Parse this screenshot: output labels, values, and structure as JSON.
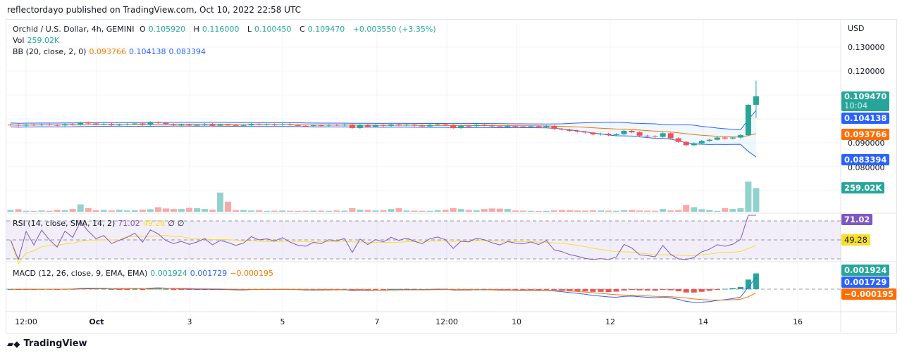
{
  "publisher": "reflectordayo published on TradingView.com, Oct 10, 2022 22:58 UTC",
  "symbol": {
    "title": "Orchid / U.S. Dollar, 4h, GEMINI",
    "o_label": "O",
    "o": "0.105920",
    "h_label": "H",
    "h": "0.116000",
    "l_label": "L",
    "l": "0.100450",
    "c_label": "C",
    "c": "0.109470",
    "change": "+0.003550 (+3.35%)"
  },
  "vol": {
    "label": "Vol",
    "value": "259.02K"
  },
  "bb": {
    "label": "BB (20, close, 2, 0)",
    "basis": "0.093766",
    "upper": "0.104138",
    "lower": "0.083394"
  },
  "rsi": {
    "label": "RSI (14, close, SMA, 14, 2)",
    "value": "71.02",
    "sma": "49.28",
    "extra1": "∅",
    "extra2": "∅"
  },
  "macd": {
    "label": "MACD (12, 26, close, 9, EMA, EMA)",
    "macd": "0.001924",
    "signal": "0.001729",
    "hist": "−0.000195"
  },
  "price_axis": {
    "currency": "USD",
    "ticks": [
      "0.130000",
      "0.120000",
      "0.090000",
      "0.080000"
    ],
    "last": "0.109470",
    "countdown": "10:04"
  },
  "time_axis": [
    "12:00",
    "Oct",
    "3",
    "5",
    "7",
    "12:00",
    "10",
    "12",
    "14",
    "16"
  ],
  "colors": {
    "up": "#26a69a",
    "down": "#ef5350",
    "bb_band": "#2962ff",
    "bb_basis": "#ff6d00",
    "rsi": "#7e57c2",
    "rsi_sma": "#f7de2c"
  },
  "footer": "TradingView",
  "chart_data": {
    "type": "candlestick",
    "interval": "4h",
    "price_range": [
      0.078,
      0.132
    ],
    "closes": [
      0.0975,
      0.0972,
      0.0976,
      0.0974,
      0.0977,
      0.0975,
      0.0973,
      0.0978,
      0.0976,
      0.0985,
      0.0981,
      0.0977,
      0.0979,
      0.0974,
      0.0976,
      0.0978,
      0.0981,
      0.0975,
      0.0986,
      0.0983,
      0.0977,
      0.0974,
      0.0976,
      0.0973,
      0.0975,
      0.0978,
      0.0972,
      0.0976,
      0.0974,
      0.0971,
      0.0973,
      0.0979,
      0.0976,
      0.0977,
      0.0975,
      0.0978,
      0.0974,
      0.0971,
      0.097,
      0.0973,
      0.0972,
      0.0975,
      0.0974,
      0.0976,
      0.0962,
      0.0975,
      0.0968,
      0.0974,
      0.0971,
      0.0977,
      0.0973,
      0.0976,
      0.0972,
      0.0969,
      0.0975,
      0.0977,
      0.0974,
      0.0962,
      0.0971,
      0.097,
      0.0975,
      0.0973,
      0.0969,
      0.0966,
      0.097,
      0.0968,
      0.0967,
      0.0969,
      0.0966,
      0.097,
      0.0958,
      0.0955,
      0.095,
      0.0947,
      0.0943,
      0.0935,
      0.0938,
      0.0932,
      0.0936,
      0.095,
      0.0944,
      0.093,
      0.0928,
      0.0925,
      0.094,
      0.0919,
      0.0904,
      0.089,
      0.0898,
      0.0908,
      0.0913,
      0.0922,
      0.0918,
      0.0922,
      0.0932,
      0.1059,
      0.10947
    ],
    "volumes_k": [
      20,
      28,
      10,
      8,
      14,
      10,
      22,
      18,
      30,
      80,
      40,
      18,
      20,
      14,
      22,
      14,
      18,
      24,
      28,
      50,
      36,
      30,
      30,
      44,
      38,
      30,
      24,
      210,
      110,
      18,
      20,
      14,
      16,
      10,
      12,
      14,
      10,
      8,
      10,
      12,
      12,
      10,
      14,
      12,
      40,
      24,
      20,
      14,
      18,
      30,
      40,
      14,
      12,
      10,
      10,
      18,
      22,
      40,
      30,
      20,
      18,
      30,
      36,
      34,
      30,
      14,
      12,
      10,
      8,
      10,
      16,
      20,
      18,
      14,
      12,
      16,
      14,
      12,
      10,
      18,
      20,
      14,
      12,
      10,
      30,
      14,
      20,
      75,
      50,
      28,
      20,
      10,
      40,
      30,
      40,
      330,
      259.02
    ]
  }
}
